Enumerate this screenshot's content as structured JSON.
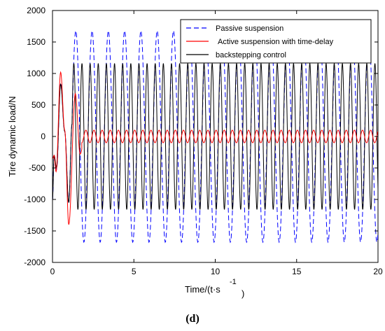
{
  "chart_data": {
    "type": "line",
    "caption": "(d)",
    "xlabel": "Time/(t·s",
    "xlabel_sup": "-1",
    "xlabel_close": ")",
    "ylabel": "Tire dynamic load/N",
    "xlim": [
      0,
      20
    ],
    "ylim": [
      -2000,
      2000
    ],
    "xticks": [
      "0",
      "5",
      "10",
      "15",
      "20"
    ],
    "yticks": [
      "2000",
      "1500",
      "1000",
      "500",
      "0",
      "-500",
      "-1000",
      "-1500",
      "-2000"
    ],
    "grid": false,
    "legend_position": "top-right",
    "colors": {
      "passive": "#0000ff",
      "active": "#ff0000",
      "backstepping": "#000000"
    },
    "series": [
      {
        "name": "Passive suspension",
        "style": "dashed",
        "oscillation": {
          "start_time": 1.2,
          "period": 1.0,
          "amplitude_max": 1680,
          "amplitude_min": -1680
        },
        "x": [
          0,
          0.1,
          0.25,
          0.5,
          0.75,
          1.0,
          1.2,
          1.45,
          1.95,
          2.45,
          2.95,
          20
        ],
        "y": [
          -1000,
          -300,
          -520,
          850,
          80,
          -1050,
          200,
          1650,
          -1680,
          1680,
          -1680,
          -1680
        ]
      },
      {
        "name": "Active suspension with time-delay",
        "style": "solid",
        "oscillation": {
          "start_time": 1.8,
          "period": 0.5,
          "amplitude_max": 100,
          "amplitude_min": -100
        },
        "x": [
          0,
          0.1,
          0.22,
          0.5,
          0.75,
          1.0,
          1.4,
          1.7,
          1.9,
          2.2,
          20
        ],
        "y": [
          -350,
          -300,
          -560,
          1020,
          100,
          -1400,
          680,
          -280,
          -120,
          100,
          0
        ]
      },
      {
        "name": "backstepping control",
        "style": "solid",
        "oscillation": {
          "start_time": 1.2,
          "period": 0.5,
          "amplitude_max": 1160,
          "amplitude_min": -1160
        },
        "x": [
          0,
          0.1,
          0.25,
          0.5,
          0.75,
          1.0,
          1.2,
          1.45,
          1.7,
          1.95,
          20
        ],
        "y": [
          -1000,
          -300,
          -500,
          830,
          80,
          -1050,
          200,
          1160,
          -1160,
          1160,
          -1160
        ]
      }
    ]
  }
}
